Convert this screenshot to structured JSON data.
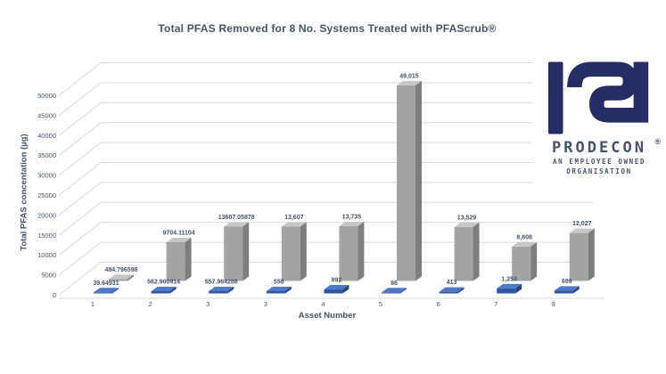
{
  "title": "Total PFAS Removed for 8 No. Systems Treated with PFAScrub®",
  "colors": {
    "text": "#44546A",
    "grid": "#D9D9D9",
    "background": "#FFFFFF",
    "logo_navy": "#262D64"
  },
  "logo": {
    "brand": "ProDecon",
    "registered": "®",
    "tagline_line1": "AN EMPLOYEE OWNED",
    "tagline_line2": "ORGANISATION"
  },
  "chart_data": {
    "type": "bar",
    "style": "3d-clustered-column",
    "title": "Total PFAS Removed for 8 No. Systems Treated with PFAScrub®",
    "xlabel": "Asset Number",
    "ylabel": "Total PFAS concentation (µg)",
    "ylim": [
      0,
      50000
    ],
    "ytick_step": 5000,
    "yticks": [
      "0",
      "5000",
      "10000",
      "15000",
      "20000",
      "25000",
      "30000",
      "35000",
      "40000",
      "45000",
      "50000"
    ],
    "categories": [
      "1",
      "2",
      "3",
      "3",
      "4",
      "5",
      "6",
      "7",
      "8"
    ],
    "grid": true,
    "legend": "none",
    "series": [
      {
        "name": "pre-treatment-blue",
        "faces": {
          "front": "#2F55A4",
          "top": "#4E79C8",
          "side": "#24417E"
        },
        "values": [
          39.64931,
          562.900914,
          557.964288,
          558,
          992,
          86,
          413,
          1253,
          699
        ],
        "labels": [
          "39.64931",
          "562.900914",
          "557.964288",
          "558",
          "992",
          "86",
          "413",
          "1,253",
          "699"
        ]
      },
      {
        "name": "total-removed-gray",
        "faces": {
          "front": "#A3A3A3",
          "top": "#C6C6C6",
          "side": "#7E7E7E"
        },
        "values": [
          484.796598,
          9704.11104,
          13607.05878,
          13607,
          13735,
          49015,
          13529,
          8608,
          12027
        ],
        "labels": [
          "484.796598",
          "9704.11104",
          "13607.05878",
          "13,607",
          "13,735",
          "49,015",
          "13,529",
          "8,608",
          "12,027"
        ]
      }
    ]
  }
}
